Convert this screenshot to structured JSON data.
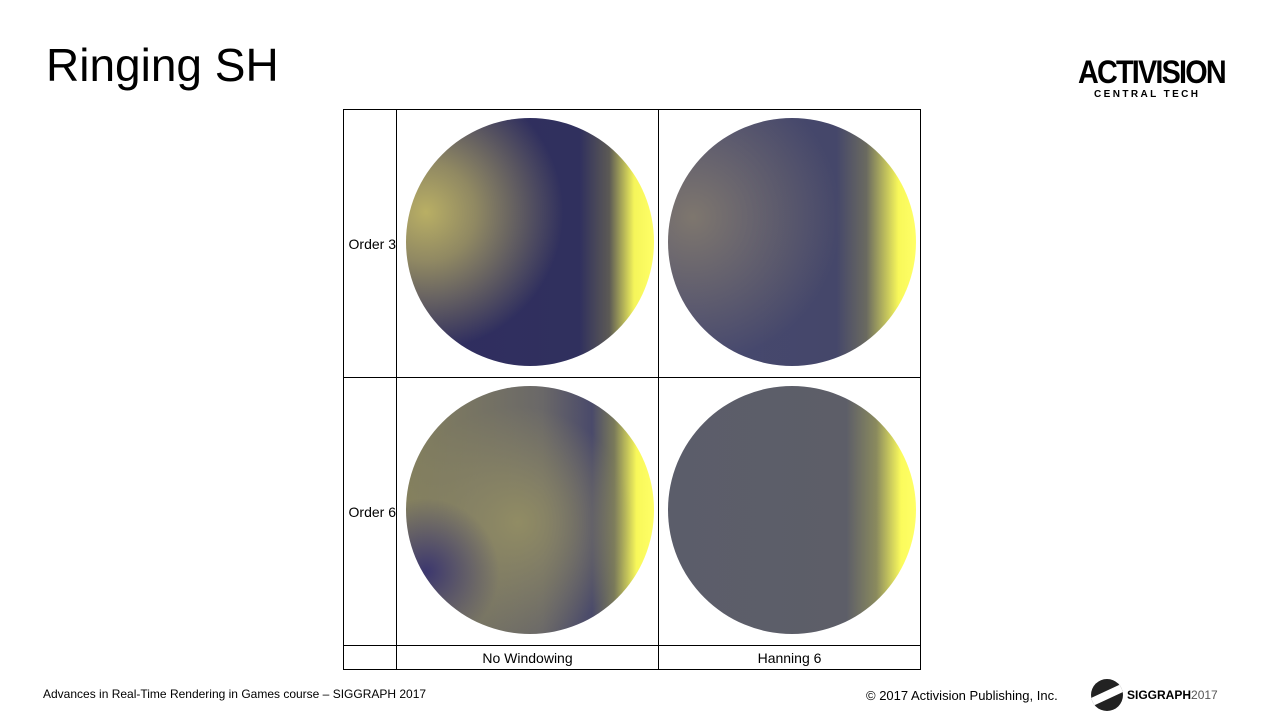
{
  "slide": {
    "title": "Ringing SH"
  },
  "logo": {
    "main": "ACTIVISION",
    "sub": "CENTRAL TECH"
  },
  "grid": {
    "rows": [
      {
        "label": "Order 3"
      },
      {
        "label": "Order 6"
      }
    ],
    "columns": [
      {
        "label": "No Windowing"
      },
      {
        "label": "Hanning 6"
      }
    ]
  },
  "footer": {
    "course": "Advances in Real-Time Rendering in Games course – SIGGRAPH 2017",
    "copyright": "© 2017 Activision Publishing, Inc.",
    "siggraph_name": "SIGGRAPH",
    "siggraph_year": "2017"
  },
  "colors": {
    "sphere_dark": "#30305e",
    "sphere_highlight": "#ffff66"
  }
}
